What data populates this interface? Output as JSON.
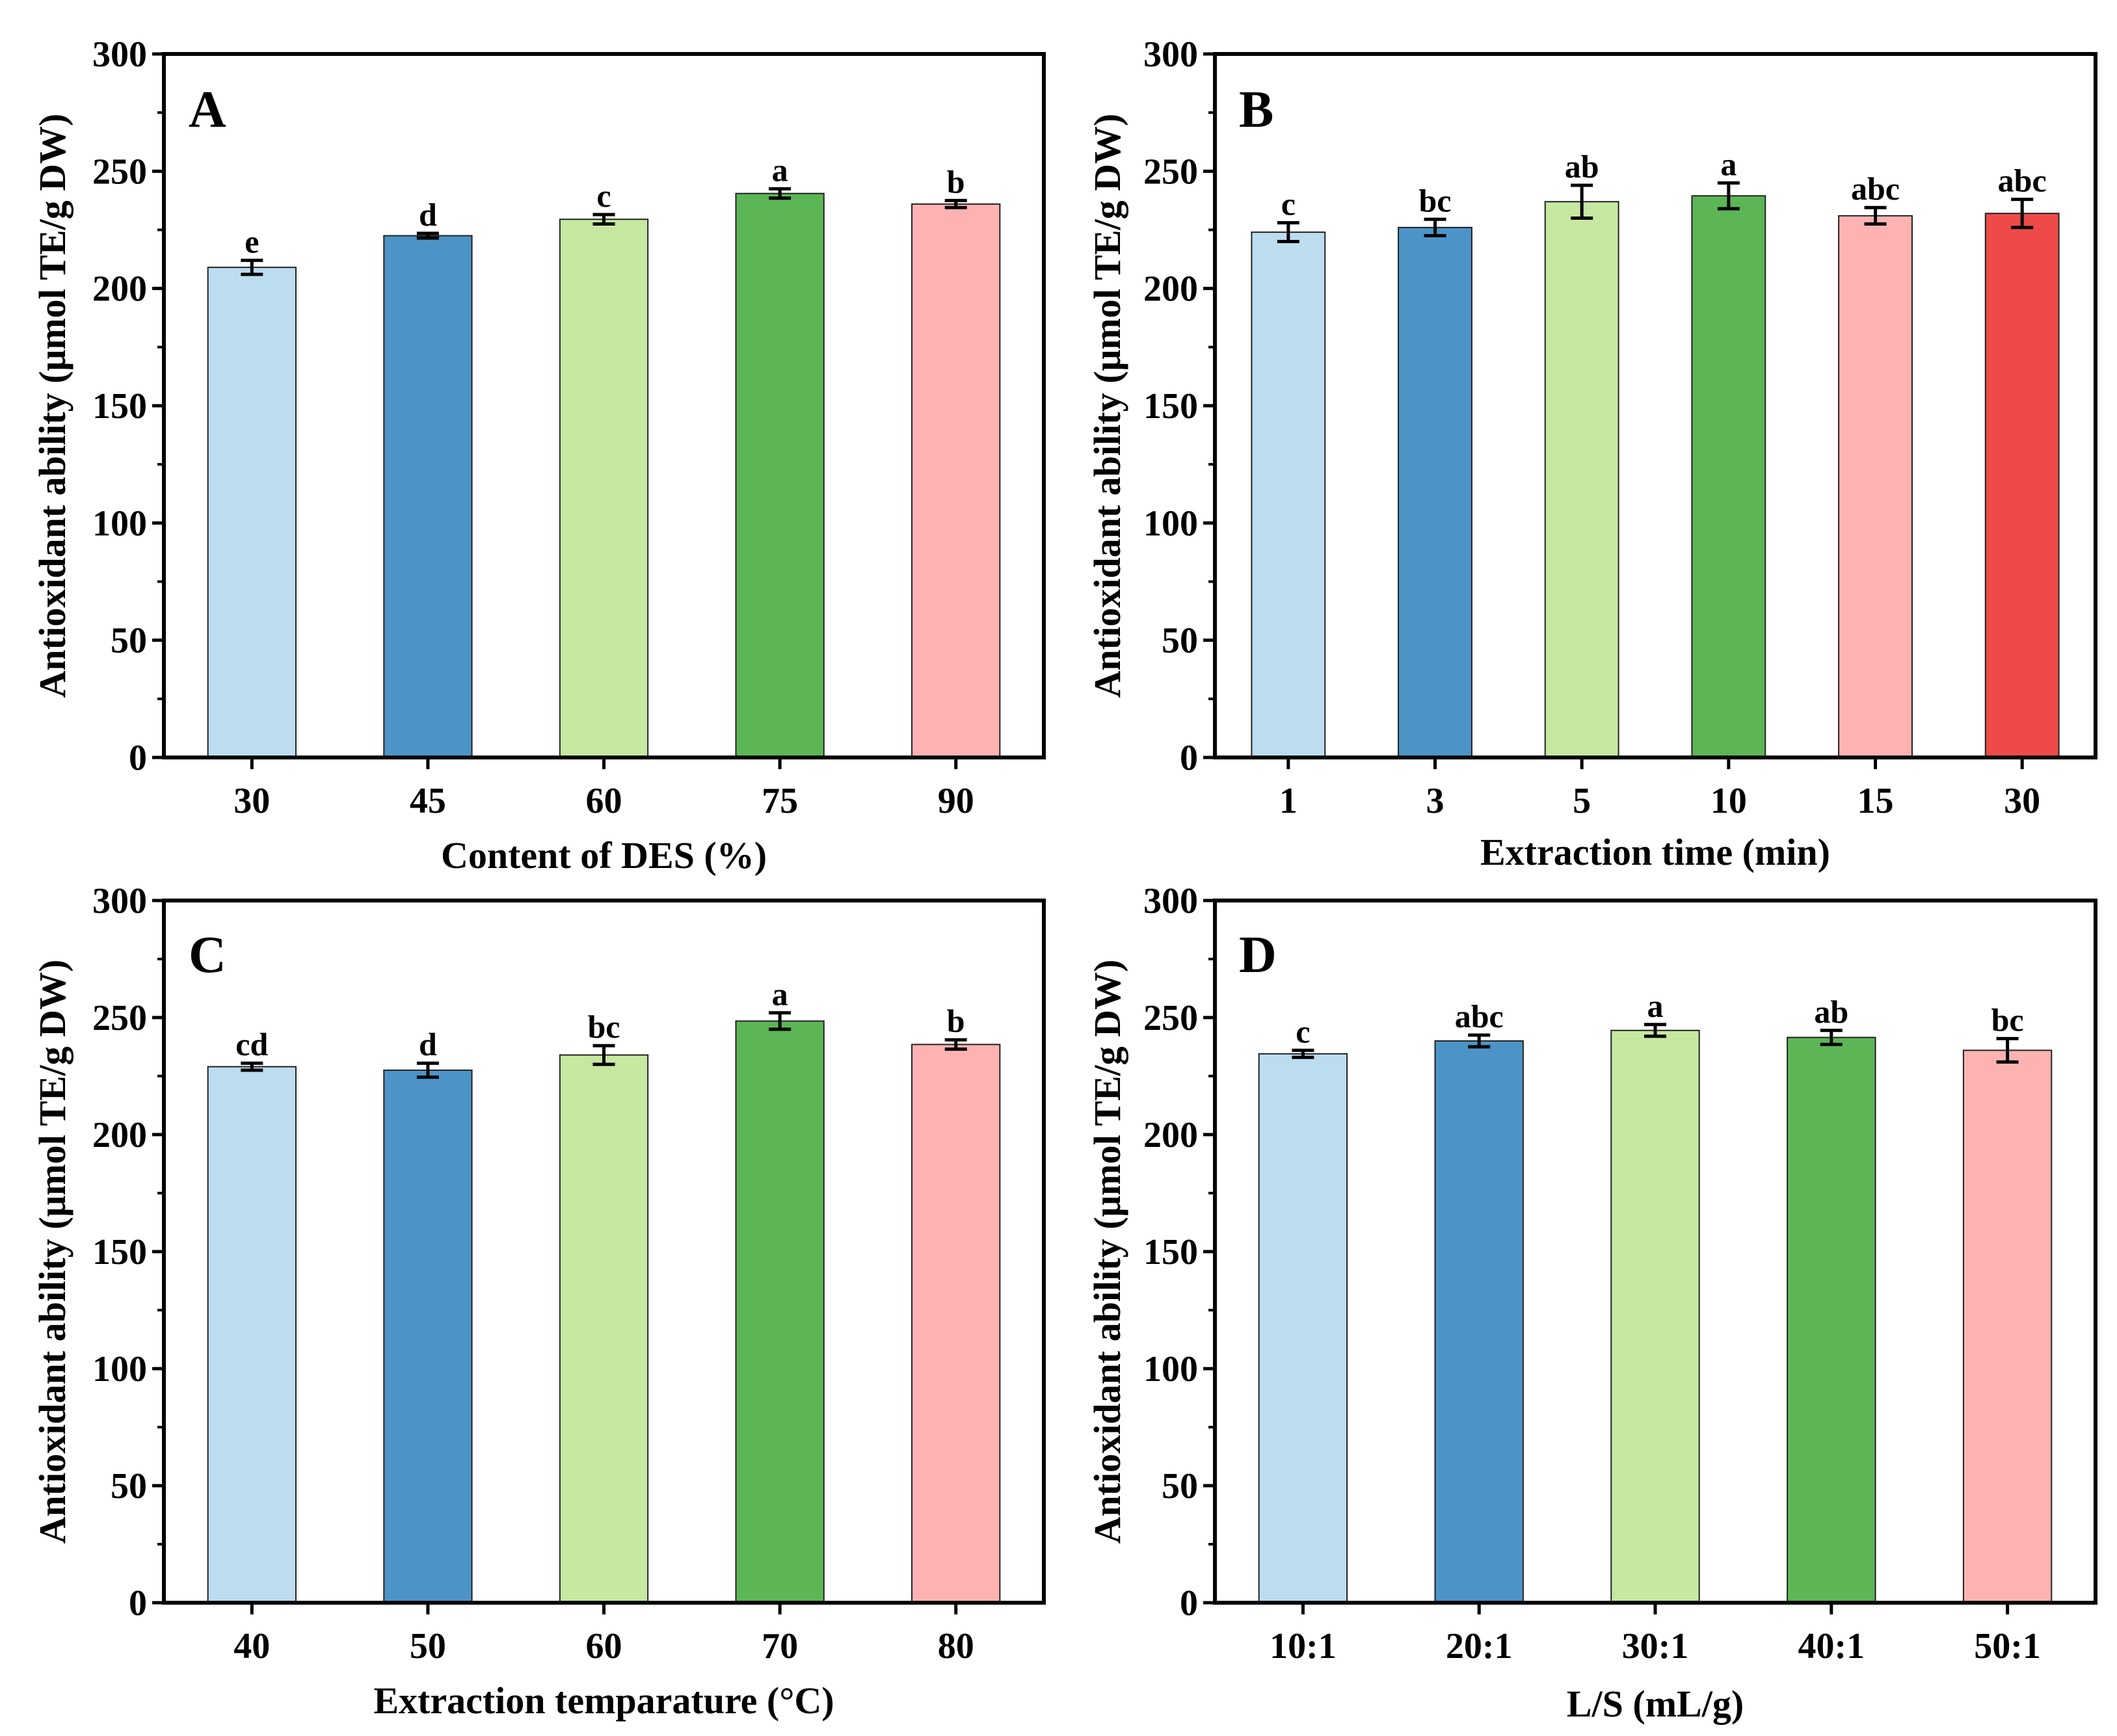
{
  "chart_data": [
    {
      "type": "bar",
      "panel_label": "A",
      "ylabel": "Antioxidant ability (μmol TE/g DW)",
      "xlabel": "Content of DES (%)",
      "ylim": [
        0,
        300
      ],
      "yticks": [
        "0",
        "50",
        "100",
        "150",
        "200",
        "250",
        "300"
      ],
      "categories": [
        "30",
        "45",
        "60",
        "75",
        "90"
      ],
      "values": [
        209,
        222.5,
        229.5,
        240.5,
        236
      ],
      "errors": [
        3,
        1,
        2,
        2,
        1.5
      ],
      "significance": [
        "e",
        "d",
        "c",
        "a",
        "b"
      ],
      "colors": [
        "#bcddf0",
        "#4c94c8",
        "#c6e8a0",
        "#5cb655",
        "#ffb2b2"
      ]
    },
    {
      "type": "bar",
      "panel_label": "B",
      "ylabel": "Antioxidant ability (μmol TE/g DW)",
      "xlabel": "Extraction time (min)",
      "ylim": [
        0,
        300
      ],
      "yticks": [
        "0",
        "50",
        "100",
        "150",
        "200",
        "250",
        "300"
      ],
      "categories": [
        "1",
        "3",
        "5",
        "10",
        "15",
        "30"
      ],
      "values": [
        224,
        226,
        237,
        239.5,
        231,
        232
      ],
      "errors": [
        4,
        3.5,
        7,
        5.5,
        3.5,
        6
      ],
      "significance": [
        "c",
        "bc",
        "ab",
        "a",
        "abc",
        "abc"
      ],
      "colors": [
        "#bcddf0",
        "#4c94c8",
        "#c6e8a0",
        "#5cb655",
        "#ffb2b2",
        "#ee4a4a"
      ]
    },
    {
      "type": "bar",
      "panel_label": "C",
      "ylabel": "Antioxidant ability (μmol TE/g DW)",
      "xlabel": "Extraction temparature (°C)",
      "ylim": [
        0,
        300
      ],
      "yticks": [
        "0",
        "50",
        "100",
        "150",
        "200",
        "250",
        "300"
      ],
      "categories": [
        "40",
        "50",
        "60",
        "70",
        "80"
      ],
      "values": [
        229,
        227.5,
        234,
        248.5,
        238.5
      ],
      "errors": [
        1.5,
        3,
        4,
        3.5,
        2
      ],
      "significance": [
        "cd",
        "d",
        "bc",
        "a",
        "b"
      ],
      "colors": [
        "#bcddf0",
        "#4c94c8",
        "#c6e8a0",
        "#5cb655",
        "#ffb2b2"
      ]
    },
    {
      "type": "bar",
      "panel_label": "D",
      "ylabel": "Antioxidant ability (μmol TE/g DW)",
      "xlabel": "L/S (mL/g)",
      "ylim": [
        0,
        300
      ],
      "yticks": [
        "0",
        "50",
        "100",
        "150",
        "200",
        "250",
        "300"
      ],
      "categories": [
        "10:1",
        "20:1",
        "30:1",
        "40:1",
        "50:1"
      ],
      "values": [
        234.5,
        240,
        244.5,
        241.5,
        236
      ],
      "errors": [
        1.5,
        2.5,
        2.5,
        3,
        5
      ],
      "significance": [
        "c",
        "abc",
        "a",
        "ab",
        "bc"
      ],
      "colors": [
        "#bcddf0",
        "#4c94c8",
        "#c6e8a0",
        "#5cb655",
        "#ffb2b2"
      ]
    }
  ]
}
